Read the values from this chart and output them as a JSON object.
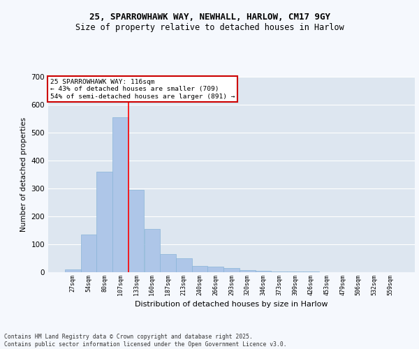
{
  "title1": "25, SPARROWHAWK WAY, NEWHALL, HARLOW, CM17 9GY",
  "title2": "Size of property relative to detached houses in Harlow",
  "xlabel": "Distribution of detached houses by size in Harlow",
  "ylabel": "Number of detached properties",
  "categories": [
    "27sqm",
    "54sqm",
    "80sqm",
    "107sqm",
    "133sqm",
    "160sqm",
    "187sqm",
    "213sqm",
    "240sqm",
    "266sqm",
    "293sqm",
    "320sqm",
    "346sqm",
    "373sqm",
    "399sqm",
    "426sqm",
    "453sqm",
    "479sqm",
    "506sqm",
    "532sqm",
    "559sqm"
  ],
  "values": [
    10,
    135,
    360,
    555,
    295,
    155,
    65,
    50,
    22,
    20,
    15,
    8,
    6,
    3,
    2,
    2,
    1,
    1,
    0,
    0,
    0
  ],
  "bar_color": "#aec6e8",
  "bar_edge_color": "#8ab4d8",
  "background_color": "#dde6f0",
  "grid_color": "#ffffff",
  "red_line_x": 3.5,
  "annotation_text": "25 SPARROWHAWK WAY: 116sqm\n← 43% of detached houses are smaller (709)\n54% of semi-detached houses are larger (891) →",
  "annotation_box_color": "#ffffff",
  "annotation_box_edge": "#cc0000",
  "footnote": "Contains HM Land Registry data © Crown copyright and database right 2025.\nContains public sector information licensed under the Open Government Licence v3.0.",
  "fig_background": "#f5f8fd",
  "ylim": [
    0,
    700
  ],
  "yticks": [
    0,
    100,
    200,
    300,
    400,
    500,
    600,
    700
  ]
}
